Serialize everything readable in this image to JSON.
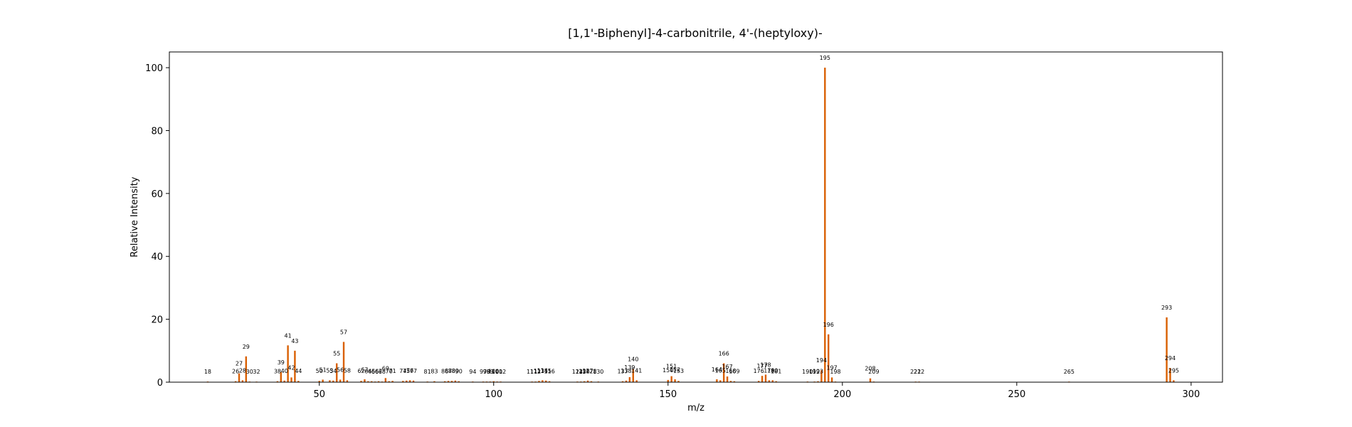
{
  "chart_data": {
    "type": "bar",
    "title": "[1,1'-Biphenyl]-4-carbonitrile, 4'-(heptyloxy)-",
    "xlabel": "m/z",
    "ylabel": "Relative Intensity",
    "xlim": [
      7,
      309
    ],
    "ylim": [
      0,
      105
    ],
    "xticks": [
      50,
      100,
      150,
      200,
      250,
      300
    ],
    "yticks": [
      0,
      20,
      40,
      60,
      80,
      100
    ],
    "bar_color": "#d95f02",
    "peaks": [
      {
        "mz": 18,
        "intensity": 0.2
      },
      {
        "mz": 26,
        "intensity": 0.3
      },
      {
        "mz": 27,
        "intensity": 2.8
      },
      {
        "mz": 28,
        "intensity": 0.6
      },
      {
        "mz": 29,
        "intensity": 8.2
      },
      {
        "mz": 30,
        "intensity": 0.2
      },
      {
        "mz": 32,
        "intensity": 0.1
      },
      {
        "mz": 38,
        "intensity": 0.3
      },
      {
        "mz": 39,
        "intensity": 3.2
      },
      {
        "mz": 40,
        "intensity": 0.5
      },
      {
        "mz": 41,
        "intensity": 11.7
      },
      {
        "mz": 42,
        "intensity": 1.5
      },
      {
        "mz": 43,
        "intensity": 10.0
      },
      {
        "mz": 44,
        "intensity": 0.4
      },
      {
        "mz": 50,
        "intensity": 0.4
      },
      {
        "mz": 51,
        "intensity": 0.8
      },
      {
        "mz": 53,
        "intensity": 0.6
      },
      {
        "mz": 54,
        "intensity": 0.5
      },
      {
        "mz": 55,
        "intensity": 6.0
      },
      {
        "mz": 56,
        "intensity": 0.8
      },
      {
        "mz": 57,
        "intensity": 12.8
      },
      {
        "mz": 58,
        "intensity": 0.6
      },
      {
        "mz": 62,
        "intensity": 0.4
      },
      {
        "mz": 63,
        "intensity": 0.9
      },
      {
        "mz": 64,
        "intensity": 0.3
      },
      {
        "mz": 65,
        "intensity": 0.3
      },
      {
        "mz": 66,
        "intensity": 0.2
      },
      {
        "mz": 67,
        "intensity": 0.3
      },
      {
        "mz": 68,
        "intensity": 0.2
      },
      {
        "mz": 69,
        "intensity": 1.3
      },
      {
        "mz": 70,
        "intensity": 0.3
      },
      {
        "mz": 71,
        "intensity": 0.4
      },
      {
        "mz": 74,
        "intensity": 0.4
      },
      {
        "mz": 75,
        "intensity": 0.5
      },
      {
        "mz": 76,
        "intensity": 0.6
      },
      {
        "mz": 77,
        "intensity": 0.5
      },
      {
        "mz": 81,
        "intensity": 0.2
      },
      {
        "mz": 83,
        "intensity": 0.3
      },
      {
        "mz": 86,
        "intensity": 0.3
      },
      {
        "mz": 87,
        "intensity": 0.4
      },
      {
        "mz": 88,
        "intensity": 0.4
      },
      {
        "mz": 89,
        "intensity": 0.5
      },
      {
        "mz": 90,
        "intensity": 0.3
      },
      {
        "mz": 94,
        "intensity": 0.2
      },
      {
        "mz": 97,
        "intensity": 0.2
      },
      {
        "mz": 98,
        "intensity": 0.2
      },
      {
        "mz": 99,
        "intensity": 0.2
      },
      {
        "mz": 100,
        "intensity": 0.3
      },
      {
        "mz": 101,
        "intensity": 0.2
      },
      {
        "mz": 102,
        "intensity": 0.2
      },
      {
        "mz": 111,
        "intensity": 0.2
      },
      {
        "mz": 112,
        "intensity": 0.2
      },
      {
        "mz": 113,
        "intensity": 0.4
      },
      {
        "mz": 114,
        "intensity": 0.6
      },
      {
        "mz": 115,
        "intensity": 0.5
      },
      {
        "mz": 116,
        "intensity": 0.3
      },
      {
        "mz": 124,
        "intensity": 0.2
      },
      {
        "mz": 125,
        "intensity": 0.2
      },
      {
        "mz": 126,
        "intensity": 0.3
      },
      {
        "mz": 127,
        "intensity": 0.5
      },
      {
        "mz": 128,
        "intensity": 0.3
      },
      {
        "mz": 130,
        "intensity": 0.2
      },
      {
        "mz": 137,
        "intensity": 0.3
      },
      {
        "mz": 138,
        "intensity": 0.5
      },
      {
        "mz": 139,
        "intensity": 1.6
      },
      {
        "mz": 140,
        "intensity": 4.2
      },
      {
        "mz": 141,
        "intensity": 0.6
      },
      {
        "mz": 150,
        "intensity": 0.7
      },
      {
        "mz": 151,
        "intensity": 1.9
      },
      {
        "mz": 152,
        "intensity": 0.9
      },
      {
        "mz": 153,
        "intensity": 0.4
      },
      {
        "mz": 164,
        "intensity": 0.9
      },
      {
        "mz": 165,
        "intensity": 0.6
      },
      {
        "mz": 166,
        "intensity": 6.0
      },
      {
        "mz": 167,
        "intensity": 1.8
      },
      {
        "mz": 168,
        "intensity": 0.4
      },
      {
        "mz": 169,
        "intensity": 0.3
      },
      {
        "mz": 176,
        "intensity": 0.4
      },
      {
        "mz": 177,
        "intensity": 2.0
      },
      {
        "mz": 178,
        "intensity": 2.4
      },
      {
        "mz": 179,
        "intensity": 0.6
      },
      {
        "mz": 180,
        "intensity": 0.6
      },
      {
        "mz": 181,
        "intensity": 0.3
      },
      {
        "mz": 190,
        "intensity": 0.2
      },
      {
        "mz": 192,
        "intensity": 0.2
      },
      {
        "mz": 193,
        "intensity": 0.3
      },
      {
        "mz": 194,
        "intensity": 3.8
      },
      {
        "mz": 195,
        "intensity": 100
      },
      {
        "mz": 196,
        "intensity": 15.2
      },
      {
        "mz": 197,
        "intensity": 1.5
      },
      {
        "mz": 198,
        "intensity": 0.2
      },
      {
        "mz": 208,
        "intensity": 1.2
      },
      {
        "mz": 209,
        "intensity": 0.2
      },
      {
        "mz": 221,
        "intensity": 0.1
      },
      {
        "mz": 222,
        "intensity": 0.1
      },
      {
        "mz": 265,
        "intensity": 0.1
      },
      {
        "mz": 293,
        "intensity": 20.6
      },
      {
        "mz": 294,
        "intensity": 4.5
      },
      {
        "mz": 295,
        "intensity": 0.6
      }
    ]
  }
}
